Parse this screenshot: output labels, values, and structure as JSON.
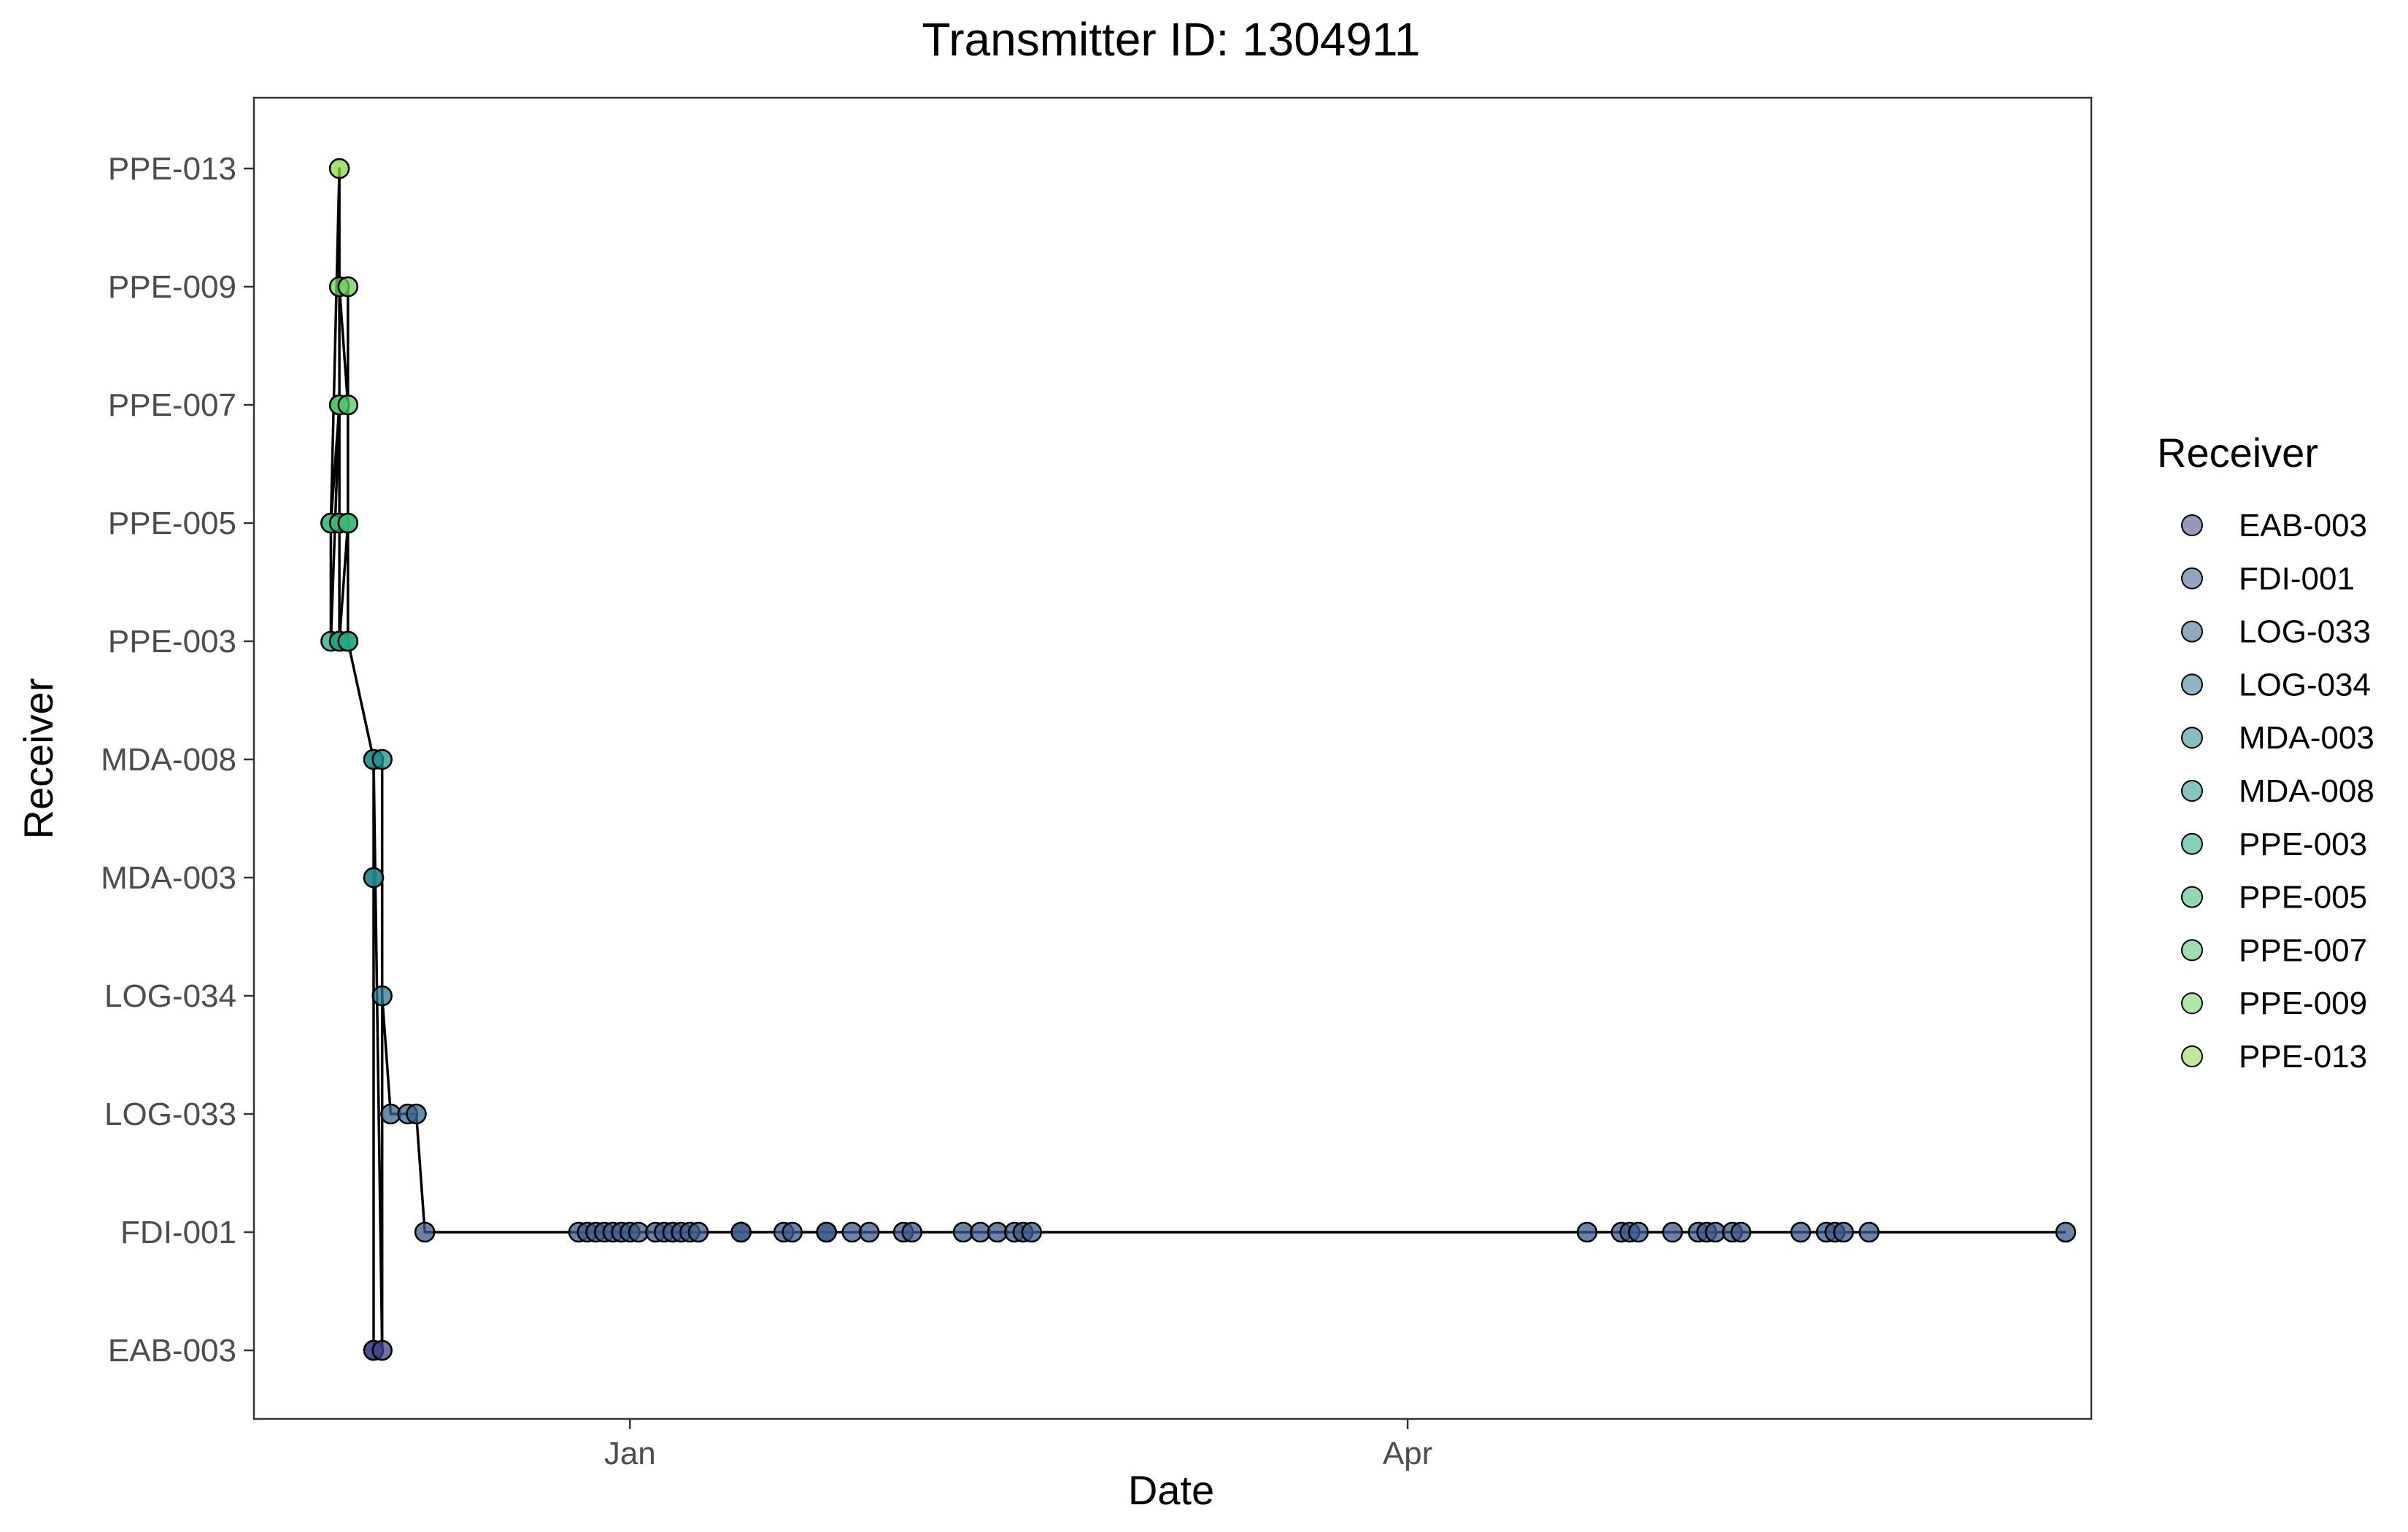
{
  "chart_data": {
    "type": "scatter",
    "title": "Transmitter ID: 1304911",
    "xlabel": "Date",
    "ylabel": "Receiver",
    "legend": {
      "title": "Receiver",
      "position": "right",
      "entries": [
        "EAB-003",
        "FDI-001",
        "LOG-033",
        "LOG-034",
        "MDA-003",
        "MDA-008",
        "PPE-003",
        "PPE-005",
        "PPE-007",
        "PPE-009",
        "PPE-013"
      ]
    },
    "y_categories": [
      "EAB-003",
      "FDI-001",
      "LOG-033",
      "LOG-034",
      "MDA-003",
      "MDA-008",
      "PPE-003",
      "PPE-005",
      "PPE-007",
      "PPE-009",
      "PPE-013"
    ],
    "x_ticks": [
      {
        "label": "Jan",
        "date": "2000-01-01"
      },
      {
        "label": "Apr",
        "date": "2000-04-01"
      }
    ],
    "xlim": [
      "1999-11-18",
      "2000-06-20"
    ],
    "grid": false,
    "colors": {
      "EAB-003": "#414487",
      "FDI-001": "#3b5a8c",
      "LOG-033": "#35668d",
      "LOG-034": "#2f778e",
      "MDA-003": "#27858e",
      "MDA-008": "#21938b",
      "PPE-003": "#25a584",
      "PPE-005": "#3bb878",
      "PPE-007": "#52c569",
      "PPE-009": "#6ccd5a",
      "PPE-013": "#8bd646"
    },
    "series": [
      {
        "x": [
          "1999-11-27",
          "1999-11-27",
          "1999-11-28",
          "1999-11-27",
          "1999-11-28",
          "1999-11-28",
          "1999-11-28",
          "1999-11-28",
          "1999-11-28",
          "1999-11-28",
          "1999-11-28",
          "1999-11-29",
          "1999-11-29",
          "1999-11-28",
          "1999-11-29",
          "1999-11-29",
          "1999-11-29",
          "1999-11-29",
          "1999-12-02",
          "1999-12-02",
          "1999-12-02",
          "1999-12-02",
          "1999-12-02",
          "1999-12-02",
          "1999-12-03",
          "1999-12-03",
          "1999-12-03",
          "1999-12-04",
          "1999-12-06",
          "1999-12-07",
          "1999-12-08",
          "1999-12-26",
          "1999-12-27",
          "1999-12-28",
          "1999-12-29",
          "1999-12-30",
          "1999-12-31",
          "2000-01-01",
          "2000-01-02",
          "2000-01-04",
          "2000-01-05",
          "2000-01-06",
          "2000-01-07",
          "2000-01-08",
          "2000-01-09",
          "2000-01-14",
          "2000-01-14",
          "2000-01-19",
          "2000-01-20",
          "2000-01-24",
          "2000-01-24",
          "2000-01-27",
          "2000-01-29",
          "2000-02-02",
          "2000-02-03",
          "2000-02-09",
          "2000-02-11",
          "2000-02-13",
          "2000-02-15",
          "2000-02-16",
          "2000-02-17",
          "2000-04-22",
          "2000-04-26",
          "2000-04-27",
          "2000-04-28",
          "2000-05-02",
          "2000-05-05",
          "2000-05-06",
          "2000-05-07",
          "2000-05-09",
          "2000-05-10",
          "2000-05-17",
          "2000-05-20",
          "2000-05-21",
          "2000-05-22",
          "2000-05-25",
          "2000-06-17"
        ],
        "y": [
          "PPE-005",
          "PPE-003",
          "PPE-007",
          "PPE-005",
          "PPE-013",
          "PPE-003",
          "PPE-007",
          "PPE-005",
          "PPE-003",
          "PPE-007",
          "PPE-009",
          "PPE-007",
          "PPE-005",
          "PPE-003",
          "PPE-005",
          "PPE-003",
          "PPE-009",
          "PPE-003",
          "MDA-008",
          "MDA-003",
          "EAB-003",
          "EAB-003",
          "MDA-003",
          "MDA-008",
          "EAB-003",
          "MDA-008",
          "LOG-034",
          "LOG-033",
          "LOG-033",
          "LOG-033",
          "FDI-001",
          "FDI-001",
          "FDI-001",
          "FDI-001",
          "FDI-001",
          "FDI-001",
          "FDI-001",
          "FDI-001",
          "FDI-001",
          "FDI-001",
          "FDI-001",
          "FDI-001",
          "FDI-001",
          "FDI-001",
          "FDI-001",
          "FDI-001",
          "FDI-001",
          "FDI-001",
          "FDI-001",
          "FDI-001",
          "FDI-001",
          "FDI-001",
          "FDI-001",
          "FDI-001",
          "FDI-001",
          "FDI-001",
          "FDI-001",
          "FDI-001",
          "FDI-001",
          "FDI-001",
          "FDI-001",
          "FDI-001",
          "FDI-001",
          "FDI-001",
          "FDI-001",
          "FDI-001",
          "FDI-001",
          "FDI-001",
          "FDI-001",
          "FDI-001",
          "FDI-001",
          "FDI-001",
          "FDI-001",
          "FDI-001",
          "FDI-001",
          "FDI-001",
          "FDI-001"
        ]
      }
    ]
  }
}
